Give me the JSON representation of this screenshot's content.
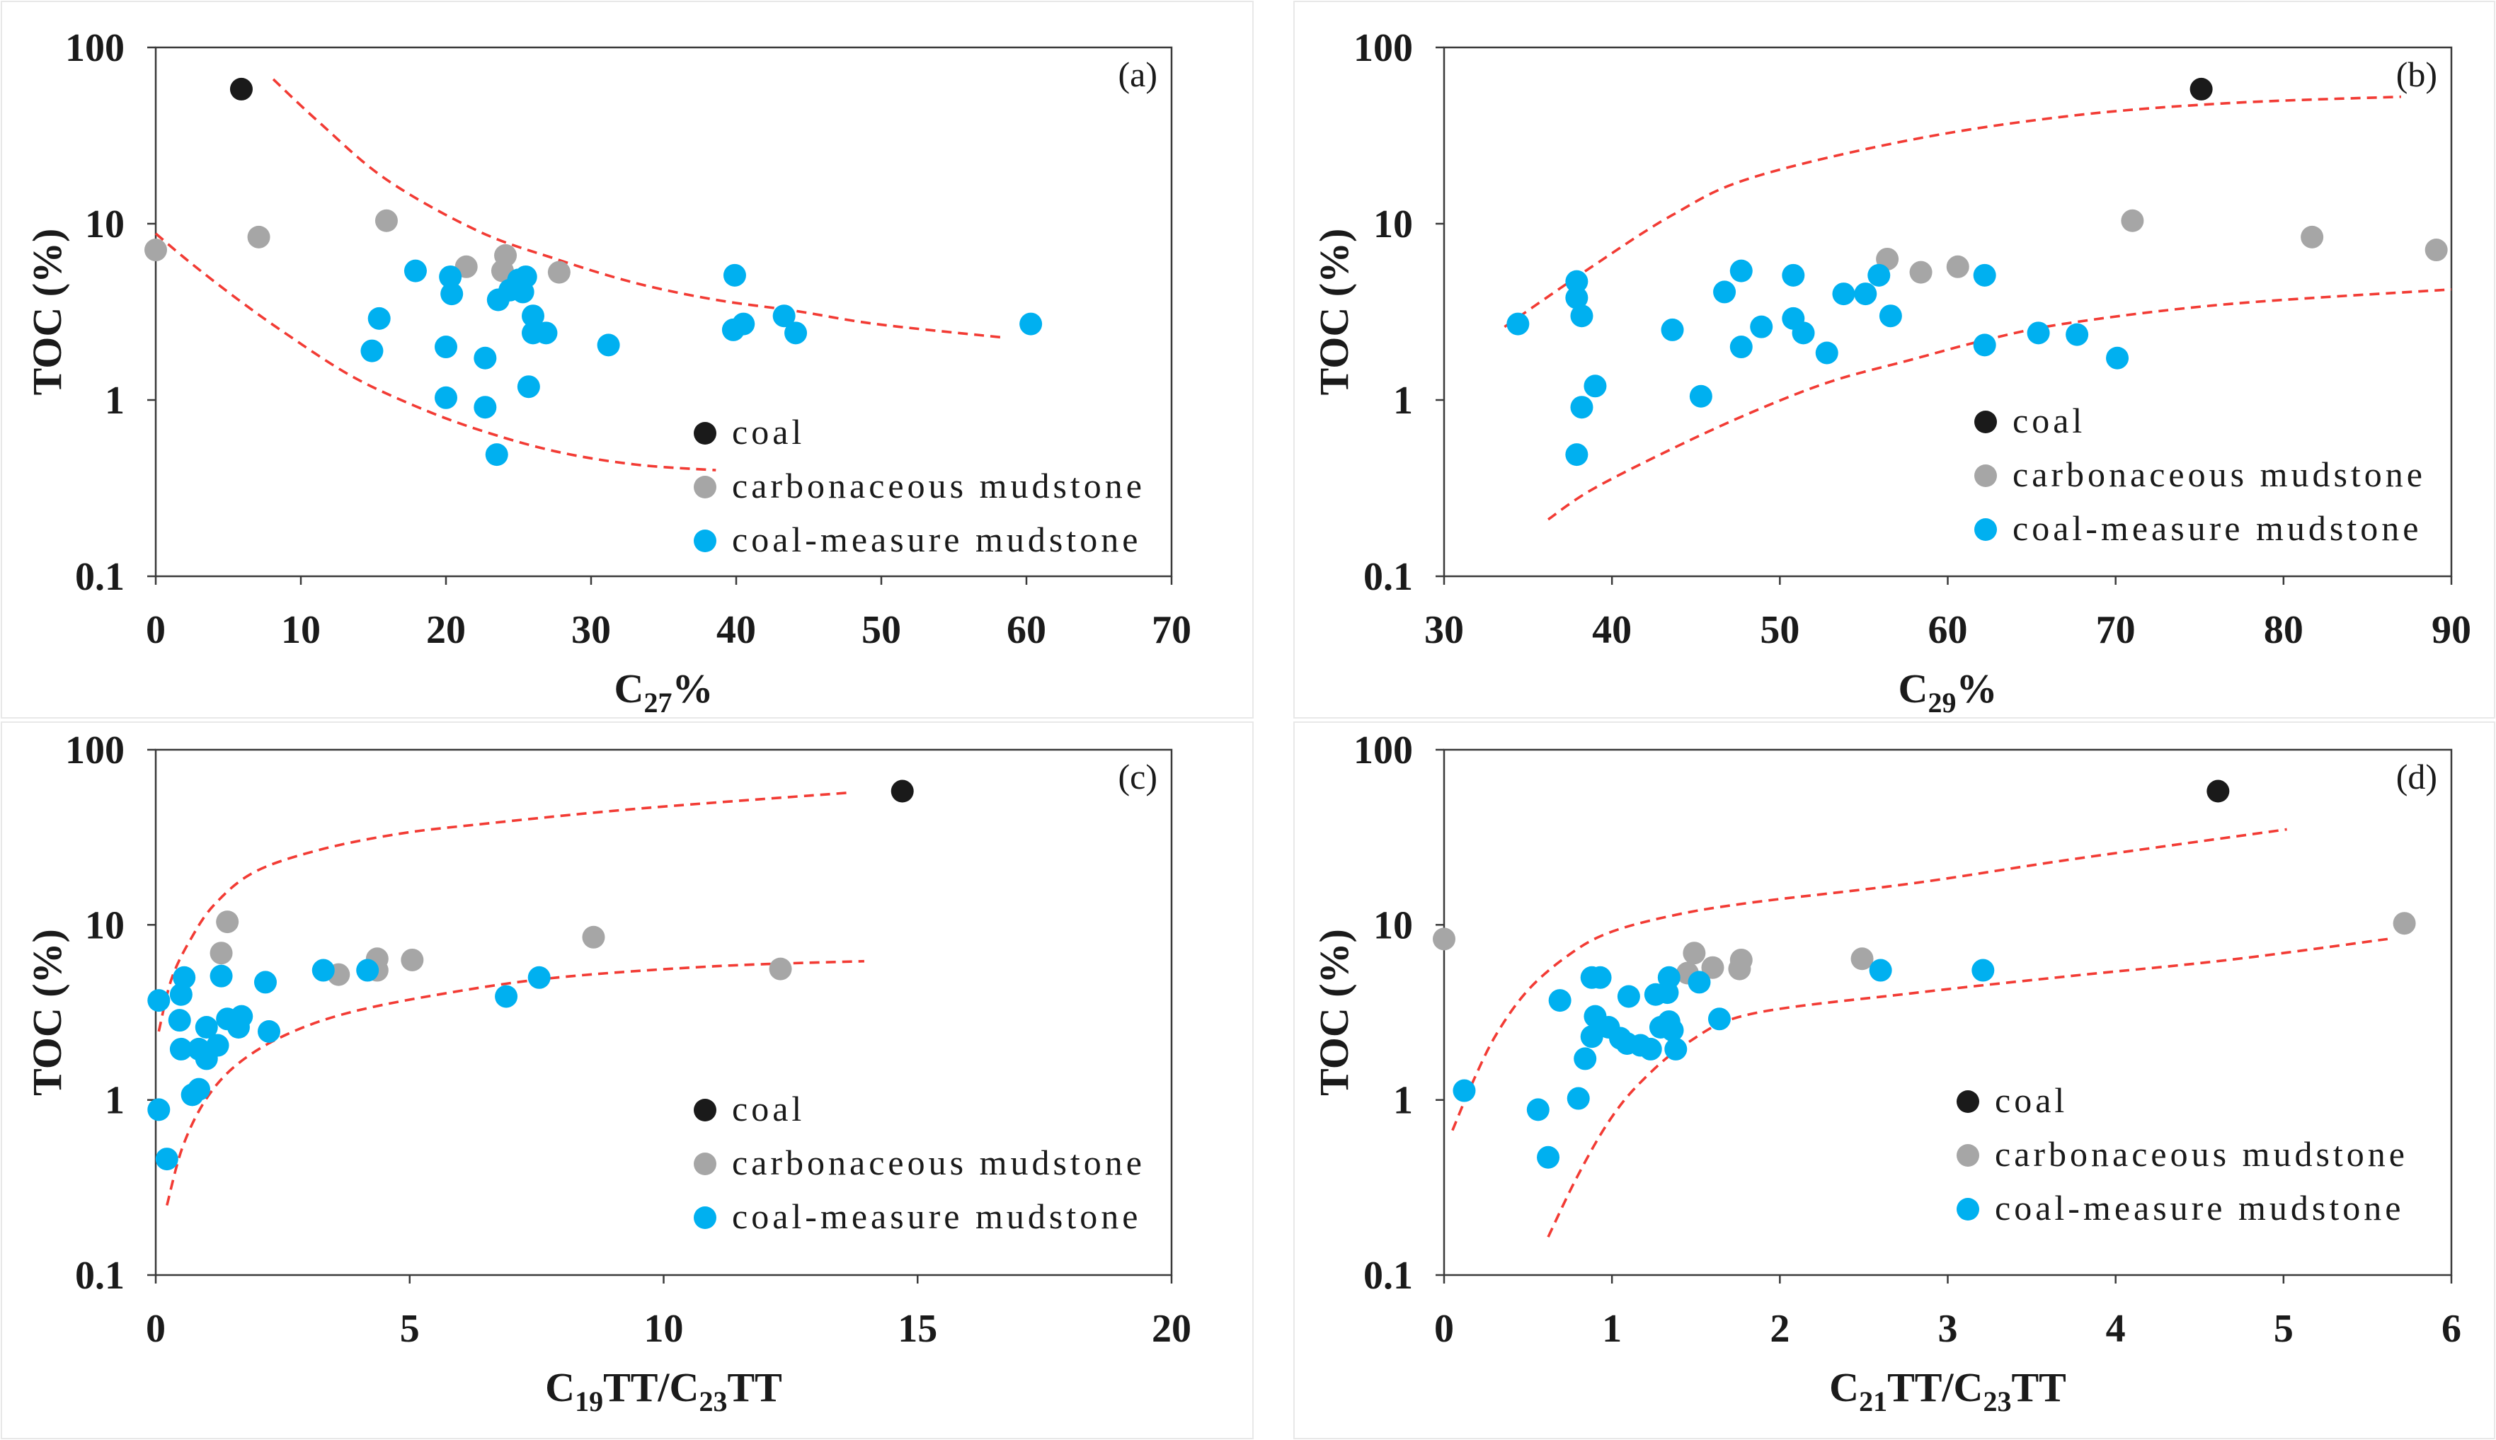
{
  "chart_data": [
    {
      "type": "scatter",
      "panel_label": "(a)",
      "xlabel": [
        {
          "text": "C"
        },
        {
          "text": "27",
          "sub": true
        },
        {
          "text": "%"
        }
      ],
      "ylabel": "TOC (%)",
      "xlim": [
        0,
        70
      ],
      "ylim": [
        0.1,
        100
      ],
      "yscale": "log",
      "xticks": [
        0,
        10,
        20,
        30,
        40,
        50,
        60,
        70
      ],
      "yticks": [
        0.1,
        1,
        10,
        100
      ],
      "grid": false,
      "legend": {
        "placement": "lower-center"
      },
      "series": [
        {
          "name": "coal",
          "color": "#1a1a1a",
          "points": [
            [
              5.9,
              58
            ]
          ]
        },
        {
          "name": "carbonaceous mudstone",
          "color": "#a6a6a6",
          "points": [
            [
              0,
              7.1
            ],
            [
              7.1,
              8.4
            ],
            [
              15.9,
              10.4
            ],
            [
              21.4,
              5.7
            ],
            [
              24.1,
              6.6
            ],
            [
              23.9,
              5.4
            ],
            [
              27.8,
              5.3
            ]
          ]
        },
        {
          "name": "coal-measure mudstone",
          "color": "#00b0f0",
          "points": [
            [
              17.9,
              5.4
            ],
            [
              15.4,
              2.9
            ],
            [
              14.9,
              1.9
            ],
            [
              20.3,
              5.0
            ],
            [
              20.4,
              4.0
            ],
            [
              20.0,
              2.0
            ],
            [
              20.0,
              1.03
            ],
            [
              22.7,
              1.73
            ],
            [
              22.7,
              0.91
            ],
            [
              23.5,
              0.49
            ],
            [
              23.6,
              3.7
            ],
            [
              24.4,
              4.2
            ],
            [
              25.0,
              4.8
            ],
            [
              25.5,
              5.0
            ],
            [
              25.3,
              4.1
            ],
            [
              26.0,
              3.0
            ],
            [
              26.0,
              2.4
            ],
            [
              26.9,
              2.4
            ],
            [
              25.7,
              1.19
            ],
            [
              31.2,
              2.05
            ],
            [
              39.9,
              5.1
            ],
            [
              39.8,
              2.5
            ],
            [
              40.5,
              2.7
            ],
            [
              43.3,
              3.0
            ],
            [
              44.1,
              2.4
            ],
            [
              60.3,
              2.7
            ]
          ]
        }
      ],
      "envelope_curves": [
        {
          "color": "#f23b34",
          "points": [
            [
              8.1,
              66
            ],
            [
              11.2,
              38
            ],
            [
              15.9,
              17.8
            ],
            [
              22.2,
              9.1
            ],
            [
              27.6,
              6.3
            ],
            [
              33.1,
              4.6
            ],
            [
              38.6,
              3.7
            ],
            [
              44.1,
              3.2
            ],
            [
              49.6,
              2.7
            ],
            [
              58.2,
              2.27
            ]
          ]
        },
        {
          "color": "#f23b34",
          "points": [
            [
              0,
              8.8
            ],
            [
              2.4,
              6.0
            ],
            [
              5.7,
              3.7
            ],
            [
              9.0,
              2.37
            ],
            [
              13.4,
              1.38
            ],
            [
              17.8,
              0.93
            ],
            [
              22.2,
              0.68
            ],
            [
              27.6,
              0.51
            ],
            [
              33.1,
              0.43
            ],
            [
              38.6,
              0.4
            ]
          ]
        }
      ]
    },
    {
      "type": "scatter",
      "panel_label": "(b)",
      "xlabel": [
        {
          "text": "C"
        },
        {
          "text": "29",
          "sub": true
        },
        {
          "text": "%"
        }
      ],
      "ylabel": "TOC (%)",
      "xlim": [
        30,
        90
      ],
      "ylim": [
        0.1,
        100
      ],
      "yscale": "log",
      "xticks": [
        30,
        40,
        50,
        60,
        70,
        80,
        90
      ],
      "yticks": [
        0.1,
        1,
        10,
        100
      ],
      "grid": false,
      "legend": {
        "placement": "lower-right"
      },
      "series": [
        {
          "name": "coal",
          "color": "#1a1a1a",
          "points": [
            [
              75.1,
              58
            ]
          ]
        },
        {
          "name": "carbonaceous mudstone",
          "color": "#a6a6a6",
          "points": [
            [
              56.4,
              6.3
            ],
            [
              58.4,
              5.3
            ],
            [
              60.6,
              5.7
            ],
            [
              71.0,
              10.4
            ],
            [
              81.7,
              8.4
            ],
            [
              89.1,
              7.1
            ]
          ]
        },
        {
          "name": "coal-measure mudstone",
          "color": "#00b0f0",
          "points": [
            [
              34.4,
              2.7
            ],
            [
              37.9,
              4.7
            ],
            [
              37.9,
              3.8
            ],
            [
              38.2,
              3.0
            ],
            [
              39.0,
              1.2
            ],
            [
              38.2,
              0.91
            ],
            [
              37.9,
              0.49
            ],
            [
              43.6,
              2.5
            ],
            [
              45.3,
              1.05
            ],
            [
              46.7,
              4.1
            ],
            [
              47.7,
              5.4
            ],
            [
              47.7,
              2.0
            ],
            [
              48.9,
              2.6
            ],
            [
              50.8,
              5.1
            ],
            [
              50.8,
              2.9
            ],
            [
              51.4,
              2.4
            ],
            [
              52.8,
              1.85
            ],
            [
              53.8,
              4.0
            ],
            [
              55.1,
              4.0
            ],
            [
              55.9,
              5.1
            ],
            [
              56.6,
              3.0
            ],
            [
              62.2,
              5.1
            ],
            [
              62.2,
              2.05
            ],
            [
              65.4,
              2.4
            ],
            [
              67.7,
              2.35
            ],
            [
              70.1,
              1.73
            ]
          ]
        }
      ],
      "envelope_curves": [
        {
          "color": "#f23b34",
          "points": [
            [
              33.6,
              2.6
            ],
            [
              38.8,
              5.7
            ],
            [
              43.6,
              11.2
            ],
            [
              48.3,
              18.2
            ],
            [
              57.8,
              29.9
            ],
            [
              67.3,
              40.9
            ],
            [
              76.7,
              48.3
            ],
            [
              87.0,
              52.5
            ]
          ]
        },
        {
          "color": "#f23b34",
          "points": [
            [
              36.2,
              0.21
            ],
            [
              38.8,
              0.31
            ],
            [
              43.6,
              0.53
            ],
            [
              48.3,
              0.85
            ],
            [
              53.0,
              1.27
            ],
            [
              57.8,
              1.69
            ],
            [
              62.5,
              2.22
            ],
            [
              67.3,
              2.74
            ],
            [
              76.7,
              3.5
            ],
            [
              90.0,
              4.24
            ]
          ]
        }
      ]
    },
    {
      "type": "scatter",
      "panel_label": "(c)",
      "xlabel": [
        {
          "text": "C"
        },
        {
          "text": "19",
          "sub": true
        },
        {
          "text": "TT/C"
        },
        {
          "text": "23",
          "sub": true
        },
        {
          "text": "TT"
        }
      ],
      "ylabel": "TOC (%)",
      "xlim": [
        0,
        20
      ],
      "ylim": [
        0.1,
        100
      ],
      "yscale": "log",
      "xticks": [
        0,
        5,
        10,
        15,
        20
      ],
      "yticks": [
        0.1,
        1,
        10,
        100
      ],
      "grid": false,
      "legend": {
        "placement": "lower-center"
      },
      "series": [
        {
          "name": "coal",
          "color": "#1a1a1a",
          "points": [
            [
              14.7,
              58
            ]
          ]
        },
        {
          "name": "carbonaceous mudstone",
          "color": "#a6a6a6",
          "points": [
            [
              1.41,
              10.4
            ],
            [
              1.29,
              6.9
            ],
            [
              3.6,
              5.2
            ],
            [
              4.36,
              6.4
            ],
            [
              4.36,
              5.5
            ],
            [
              5.05,
              6.3
            ],
            [
              8.62,
              8.5
            ],
            [
              12.3,
              5.6
            ]
          ]
        },
        {
          "name": "coal-measure mudstone",
          "color": "#00b0f0",
          "points": [
            [
              0.06,
              3.7
            ],
            [
              0.06,
              0.88
            ],
            [
              0.22,
              0.46
            ],
            [
              0.5,
              4.0
            ],
            [
              0.56,
              5.0
            ],
            [
              0.47,
              2.85
            ],
            [
              0.5,
              1.95
            ],
            [
              0.72,
              1.07
            ],
            [
              0.85,
              1.15
            ],
            [
              0.85,
              1.95
            ],
            [
              1.0,
              2.6
            ],
            [
              1.0,
              1.72
            ],
            [
              1.22,
              2.05
            ],
            [
              1.29,
              5.1
            ],
            [
              1.41,
              2.9
            ],
            [
              1.63,
              2.6
            ],
            [
              1.69,
              3.0
            ],
            [
              2.16,
              4.7
            ],
            [
              2.23,
              2.46
            ],
            [
              3.3,
              5.5
            ],
            [
              4.17,
              5.5
            ],
            [
              6.9,
              3.9
            ],
            [
              7.55,
              5.0
            ]
          ]
        }
      ],
      "envelope_curves": [
        {
          "color": "#f23b34",
          "points": [
            [
              0.06,
              2.46
            ],
            [
              0.31,
              4.9
            ],
            [
              0.69,
              8.3
            ],
            [
              1.16,
              13.1
            ],
            [
              1.94,
              20
            ],
            [
              3.2,
              26.7
            ],
            [
              4.76,
              33
            ],
            [
              6.33,
              37.4
            ],
            [
              9.47,
              46
            ],
            [
              13.67,
              56.9
            ]
          ]
        },
        {
          "color": "#f23b34",
          "points": [
            [
              0.22,
              0.25
            ],
            [
              0.53,
              0.54
            ],
            [
              1.0,
              1.02
            ],
            [
              1.63,
              1.62
            ],
            [
              2.57,
              2.36
            ],
            [
              3.82,
              3.16
            ],
            [
              5.7,
              4.06
            ],
            [
              7.9,
              5.0
            ],
            [
              11.0,
              5.8
            ],
            [
              13.95,
              6.2
            ]
          ]
        }
      ]
    },
    {
      "type": "scatter",
      "panel_label": "(d)",
      "xlabel": [
        {
          "text": "C"
        },
        {
          "text": "21",
          "sub": true
        },
        {
          "text": "TT/C"
        },
        {
          "text": "23",
          "sub": true
        },
        {
          "text": "TT"
        }
      ],
      "ylabel": "TOC (%)",
      "xlim": [
        0,
        6
      ],
      "ylim": [
        0.1,
        100
      ],
      "yscale": "log",
      "xticks": [
        0,
        1,
        2,
        3,
        4,
        5,
        6
      ],
      "yticks": [
        0.1,
        1,
        10,
        100
      ],
      "grid": false,
      "legend": {
        "placement": "lower-right"
      },
      "series": [
        {
          "name": "coal",
          "color": "#1a1a1a",
          "points": [
            [
              4.61,
              58
            ]
          ]
        },
        {
          "name": "carbonaceous mudstone",
          "color": "#a6a6a6",
          "points": [
            [
              0,
              8.3
            ],
            [
              1.49,
              6.9
            ],
            [
              1.45,
              5.3
            ],
            [
              1.6,
              5.7
            ],
            [
              1.77,
              6.3
            ],
            [
              1.76,
              5.6
            ],
            [
              2.49,
              6.4
            ],
            [
              5.72,
              10.2
            ]
          ]
        },
        {
          "name": "coal-measure mudstone",
          "color": "#00b0f0",
          "points": [
            [
              0.12,
              1.13
            ],
            [
              0.56,
              0.88
            ],
            [
              0.62,
              0.47
            ],
            [
              0.69,
              3.7
            ],
            [
              0.8,
              1.02
            ],
            [
              0.84,
              1.72
            ],
            [
              0.88,
              5.0
            ],
            [
              0.93,
              5.0
            ],
            [
              0.9,
              3.0
            ],
            [
              0.88,
              2.3
            ],
            [
              0.98,
              2.6
            ],
            [
              1.05,
              2.25
            ],
            [
              1.09,
              2.1
            ],
            [
              1.1,
              3.9
            ],
            [
              1.17,
              2.05
            ],
            [
              1.23,
              1.95
            ],
            [
              1.26,
              4.0
            ],
            [
              1.29,
              2.6
            ],
            [
              1.33,
              4.1
            ],
            [
              1.34,
              5.0
            ],
            [
              1.36,
              2.5
            ],
            [
              1.38,
              1.95
            ],
            [
              1.34,
              2.8
            ],
            [
              1.52,
              4.7
            ],
            [
              1.64,
              2.9
            ],
            [
              2.6,
              5.5
            ],
            [
              3.21,
              5.5
            ]
          ]
        }
      ],
      "envelope_curves": [
        {
          "color": "#f23b34",
          "points": [
            [
              0.05,
              0.67
            ],
            [
              0.17,
              1.26
            ],
            [
              0.31,
              2.36
            ],
            [
              0.5,
              4.24
            ],
            [
              0.74,
              6.7
            ],
            [
              0.98,
              9.0
            ],
            [
              1.36,
              11.3
            ],
            [
              1.83,
              13.4
            ],
            [
              2.78,
              17.2
            ],
            [
              3.73,
              23.6
            ],
            [
              5.02,
              35.1
            ]
          ]
        },
        {
          "color": "#f23b34",
          "points": [
            [
              0.62,
              0.165
            ],
            [
              0.79,
              0.36
            ],
            [
              0.98,
              0.75
            ],
            [
              1.17,
              1.26
            ],
            [
              1.45,
              2.12
            ],
            [
              1.83,
              3.1
            ],
            [
              2.78,
              4.06
            ],
            [
              3.73,
              5.1
            ],
            [
              4.67,
              6.3
            ],
            [
              5.62,
              8.3
            ]
          ]
        }
      ]
    }
  ]
}
